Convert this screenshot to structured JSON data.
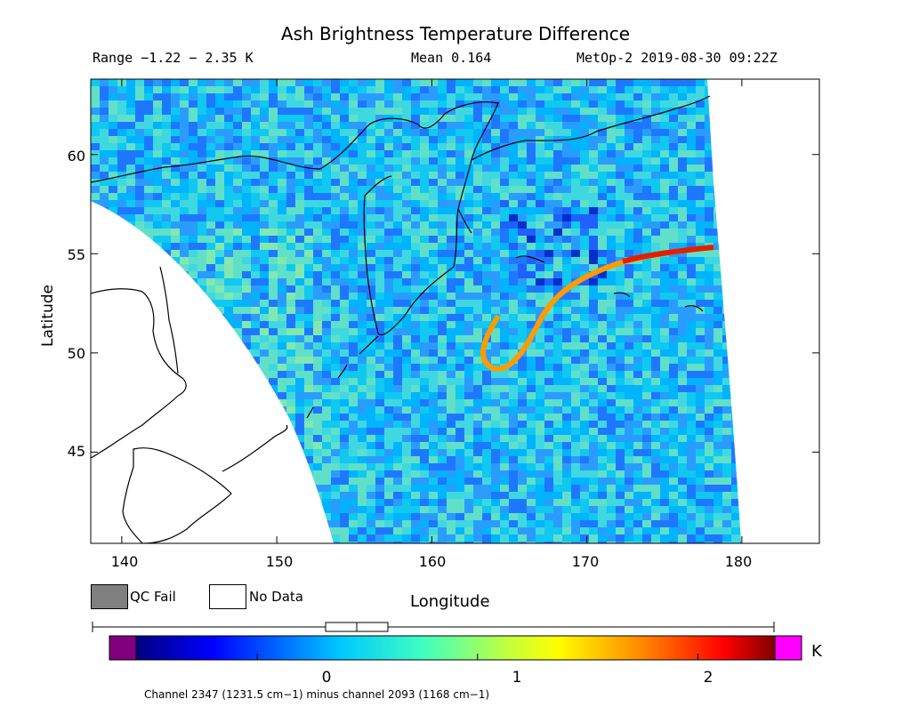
{
  "title": "Ash Brightness Temperature Difference",
  "header": {
    "range": "Range −1.22 − 2.35 K",
    "mean": "Mean 0.164",
    "satellite_time": "MetOp-2 2019-08-30 09:22Z"
  },
  "axes": {
    "ylabel": "Latitude",
    "xlabel": "Longitude",
    "yticks": [
      "45",
      "50",
      "55",
      "60"
    ],
    "xticks": [
      "140",
      "150",
      "160",
      "170",
      "180"
    ],
    "lon_range": [
      138,
      185
    ],
    "lat_range": [
      40.4,
      63.8
    ]
  },
  "legend": {
    "qc_fail": "QC Fail",
    "no_data": "No Data"
  },
  "colorbar": {
    "ticks": [
      "0",
      "1",
      "2"
    ],
    "unit": "K",
    "range": [
      -0.55,
      2.35
    ],
    "caption": "Channel 2347 (1231.5 cm−1) minus channel 2093 (1168 cm−1)"
  },
  "colors": {
    "qc_fail": "#808080",
    "below_range": "#800080",
    "above_range": "#ff00ff"
  }
}
